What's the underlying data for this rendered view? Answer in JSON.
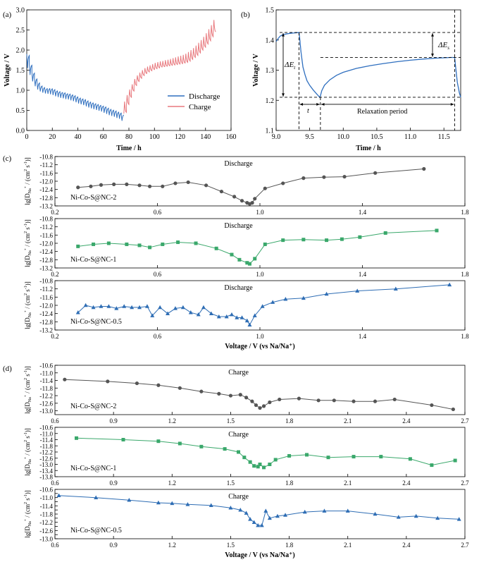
{
  "panel_labels": {
    "a": "(a)",
    "b": "(b)",
    "c": "(c)",
    "d": "(d)"
  },
  "colors": {
    "discharge": "#2f6fbf",
    "charge": "#e8797e",
    "nc2": "#555555",
    "nc1": "#3aa86b",
    "nc05": "#2e6db4",
    "guide": "#000000"
  },
  "annotations": {
    "dEt": "ΔE",
    "dEt_sub": "t",
    "dEs": "ΔE",
    "dEs_sub": "s",
    "tau": "t",
    "relax": "Relaxation period"
  },
  "diff_ylabel": {
    "pre": "lg[D",
    "sub": "Na",
    "mid": "⁺",
    "unit": " / (cm",
    "sup2": "2",
    "unit2": " s",
    "supm1": "-1",
    "end": ")]"
  },
  "chart_data": [
    {
      "id": "a",
      "type": "line",
      "xlabel": "Time / h",
      "ylabel": "Voltage / V",
      "xlim": [
        0,
        160
      ],
      "ylim": [
        0,
        3.0
      ],
      "xticks": [
        0,
        20,
        40,
        60,
        80,
        100,
        120,
        140,
        160
      ],
      "yticks": [
        0.0,
        0.5,
        1.0,
        1.5,
        2.0,
        2.5,
        3.0
      ],
      "ytick_labels": [
        "0.0",
        "0.5",
        "1.0",
        "1.5",
        "2.0",
        "2.5",
        "3.0"
      ],
      "legend_position": "right",
      "series": [
        {
          "name": "Discharge",
          "color": "#2f6fbf",
          "kind": "gitt",
          "start": 0,
          "pulses": 38,
          "period": 2.0,
          "tau_frac": 0.3,
          "v_hi": [
            1.9,
            1.65,
            1.45,
            1.3,
            1.2,
            1.12,
            1.08,
            1.05,
            1.05,
            1.05,
            1.03,
            1.0,
            0.98,
            0.96,
            0.95,
            0.93,
            0.92,
            0.9,
            0.88,
            0.85,
            0.82,
            0.8,
            0.78,
            0.75,
            0.72,
            0.7,
            0.68,
            0.66,
            0.64,
            0.62,
            0.6,
            0.57,
            0.54,
            0.52,
            0.5,
            0.47,
            0.45,
            0.4
          ],
          "v_lo": [
            1.55,
            1.38,
            1.22,
            1.1,
            1.02,
            0.97,
            0.94,
            0.92,
            0.91,
            0.9,
            0.88,
            0.85,
            0.83,
            0.81,
            0.8,
            0.78,
            0.77,
            0.75,
            0.73,
            0.7,
            0.67,
            0.65,
            0.63,
            0.6,
            0.57,
            0.55,
            0.53,
            0.51,
            0.49,
            0.47,
            0.44,
            0.41,
            0.38,
            0.36,
            0.34,
            0.31,
            0.29,
            0.24
          ]
        },
        {
          "name": "Charge",
          "color": "#e8797e",
          "kind": "gitt",
          "start": 76,
          "pulses": 36,
          "period": 2.0,
          "tau_frac": 0.3,
          "v_hi": [
            0.72,
            0.88,
            1.02,
            1.15,
            1.28,
            1.37,
            1.44,
            1.5,
            1.55,
            1.59,
            1.62,
            1.65,
            1.68,
            1.7,
            1.72,
            1.73,
            1.75,
            1.76,
            1.78,
            1.8,
            1.82,
            1.84,
            1.86,
            1.88,
            1.91,
            1.95,
            2.0,
            2.05,
            2.11,
            2.18,
            2.25,
            2.33,
            2.42,
            2.52,
            2.62,
            2.75
          ],
          "v_lo": [
            0.42,
            0.62,
            0.8,
            0.96,
            1.1,
            1.2,
            1.28,
            1.35,
            1.4,
            1.44,
            1.47,
            1.5,
            1.52,
            1.54,
            1.56,
            1.57,
            1.58,
            1.59,
            1.6,
            1.61,
            1.62,
            1.63,
            1.64,
            1.65,
            1.67,
            1.7,
            1.74,
            1.79,
            1.84,
            1.9,
            1.97,
            2.04,
            2.12,
            2.2,
            2.3,
            2.42
          ]
        }
      ]
    },
    {
      "id": "b",
      "type": "line",
      "xlabel": "Time / h",
      "ylabel": "Voltage / V",
      "xlim": [
        9.0,
        11.75
      ],
      "ylim": [
        1.1,
        1.5
      ],
      "xticks": [
        9.0,
        9.5,
        10.0,
        10.5,
        11.0,
        11.5
      ],
      "xtick_labels": [
        "9.0",
        "9.5",
        "10.0",
        "10.5",
        "11.0",
        "11.5"
      ],
      "yticks": [
        1.1,
        1.2,
        1.3,
        1.4,
        1.5
      ],
      "ytick_labels": [
        "1.1",
        "1.2",
        "1.3",
        "1.4",
        "1.5"
      ],
      "series": [
        {
          "name": "",
          "color": "#2f6fbf",
          "x": [
            9.0,
            9.03,
            9.06,
            9.1,
            9.15,
            9.2,
            9.25,
            9.3,
            9.34,
            9.35,
            9.37,
            9.4,
            9.43,
            9.46,
            9.5,
            9.55,
            9.6,
            9.65,
            9.66,
            9.68,
            9.72,
            9.8,
            9.9,
            10.0,
            10.2,
            10.4,
            10.6,
            10.8,
            11.0,
            11.2,
            11.4,
            11.6,
            11.66,
            11.67,
            11.7,
            11.73,
            11.75
          ],
          "y": [
            1.395,
            1.405,
            1.413,
            1.418,
            1.42,
            1.422,
            1.423,
            1.424,
            1.425,
            1.41,
            1.36,
            1.31,
            1.285,
            1.265,
            1.25,
            1.235,
            1.222,
            1.21,
            1.215,
            1.232,
            1.25,
            1.268,
            1.283,
            1.293,
            1.306,
            1.315,
            1.322,
            1.328,
            1.333,
            1.337,
            1.34,
            1.342,
            1.342,
            1.32,
            1.26,
            1.225,
            1.21
          ]
        }
      ],
      "guides": {
        "t_start": 9.34,
        "t_end": 9.66,
        "t_relax_end": 11.66,
        "v_top": 1.425,
        "v_min": 1.21,
        "v_eq": 1.342
      }
    },
    {
      "id": "c",
      "type": "scatter",
      "xlabel": "Voltage / V (vs Na/Na⁺)",
      "xlim": [
        0.2,
        1.8
      ],
      "ylim": [
        -13.2,
        -10.8
      ],
      "xticks": [
        0.2,
        0.6,
        1.0,
        1.4,
        1.8
      ],
      "xtick_labels": [
        "0.2",
        "0.6",
        "1.0",
        "1.4",
        "1.8"
      ],
      "yticks": [
        -10.8,
        -11.2,
        -11.6,
        -12.0,
        -12.4,
        -12.8,
        -13.2
      ],
      "ytick_labels": [
        "-10.8",
        "-11.2",
        "-11.6",
        "-12.0",
        "-12.4",
        "-12.8",
        "-13.2"
      ],
      "subplots": [
        {
          "label": "Ni-Co-S@NC-2",
          "title": "Discharge",
          "color": "#555555",
          "marker": "circle",
          "ytick_labels": [
            "-10.8",
            "-11.2",
            "-11.6",
            "-12.0",
            "-12.4",
            "-12.8",
            "-13.2"
          ],
          "x": [
            0.29,
            0.34,
            0.38,
            0.43,
            0.48,
            0.53,
            0.57,
            0.62,
            0.67,
            0.72,
            0.79,
            0.85,
            0.9,
            0.93,
            0.95,
            0.96,
            0.97,
            0.98,
            1.02,
            1.09,
            1.17,
            1.25,
            1.33,
            1.45,
            1.64
          ],
          "y": [
            -12.3,
            -12.25,
            -12.18,
            -12.15,
            -12.15,
            -12.2,
            -12.25,
            -12.25,
            -12.1,
            -12.05,
            -12.2,
            -12.5,
            -12.75,
            -12.95,
            -13.05,
            -13.1,
            -13.05,
            -12.85,
            -12.35,
            -12.1,
            -11.85,
            -11.8,
            -11.78,
            -11.6,
            -11.4
          ]
        },
        {
          "label": "Ni-Co-S@NC-1",
          "title": "Discharge",
          "color": "#3aa86b",
          "marker": "square",
          "ytick_labels": [
            "-10.8",
            "-11.2",
            "-11.6",
            "-12.0",
            "-12.4",
            "-12.8",
            "-13.2"
          ],
          "x": [
            0.29,
            0.35,
            0.41,
            0.48,
            0.53,
            0.57,
            0.62,
            0.68,
            0.75,
            0.83,
            0.89,
            0.92,
            0.95,
            0.96,
            0.98,
            1.02,
            1.09,
            1.17,
            1.26,
            1.32,
            1.39,
            1.49,
            1.69
          ],
          "y": [
            -12.15,
            -12.05,
            -12.0,
            -12.05,
            -12.1,
            -12.2,
            -12.05,
            -11.95,
            -12.0,
            -12.25,
            -12.55,
            -12.8,
            -12.95,
            -13.0,
            -12.75,
            -12.05,
            -11.85,
            -11.82,
            -11.85,
            -11.8,
            -11.7,
            -11.5,
            -11.38
          ]
        },
        {
          "label": "Ni-Co-S@NC-0.5",
          "title": "Discharge",
          "color": "#2e6db4",
          "marker": "triangle",
          "ytick_labels": [
            "-10.8",
            "-11.2",
            "-11.6",
            "-12.0",
            "-12.4",
            "-12.8",
            "-13.2"
          ],
          "x": [
            0.29,
            0.32,
            0.35,
            0.38,
            0.41,
            0.44,
            0.47,
            0.5,
            0.53,
            0.56,
            0.58,
            0.61,
            0.64,
            0.67,
            0.7,
            0.73,
            0.76,
            0.78,
            0.81,
            0.84,
            0.87,
            0.89,
            0.91,
            0.93,
            0.95,
            0.96,
            0.98,
            1.01,
            1.05,
            1.1,
            1.17,
            1.26,
            1.38,
            1.53,
            1.74
          ],
          "y": [
            -12.35,
            -12.0,
            -12.1,
            -12.05,
            -12.05,
            -12.15,
            -12.05,
            -12.1,
            -12.1,
            -12.05,
            -12.5,
            -12.1,
            -12.4,
            -12.15,
            -12.1,
            -12.35,
            -12.45,
            -12.1,
            -12.4,
            -12.55,
            -12.55,
            -12.45,
            -12.6,
            -12.6,
            -12.75,
            -12.95,
            -12.5,
            -12.05,
            -11.85,
            -11.7,
            -11.65,
            -11.45,
            -11.3,
            -11.2,
            -11.0
          ]
        }
      ]
    },
    {
      "id": "d",
      "type": "scatter",
      "xlabel": "Voltage / V (vs Na/Na⁺)",
      "xlim": [
        0.6,
        2.7
      ],
      "xticks": [
        0.6,
        0.9,
        1.2,
        1.5,
        1.8,
        2.1,
        2.4,
        2.7
      ],
      "xtick_labels": [
        "0.6",
        "0.9",
        "1.2",
        "1.5",
        "1.8",
        "2.1",
        "2.4",
        "2.7"
      ],
      "subplots": [
        {
          "label": "Ni-Co-S@NC-2",
          "title": "Charge",
          "color": "#555555",
          "marker": "circle",
          "ylim": [
            -13.2,
            -10.6
          ],
          "yticks": [
            -10.6,
            -11.0,
            -11.4,
            -11.8,
            -12.2,
            -12.6,
            -13.0
          ],
          "ytick_labels": [
            "-10.6",
            "-11.0",
            "-11.4",
            "-11.8",
            "-12.2",
            "-12.6",
            "-13.0"
          ],
          "x": [
            0.65,
            0.87,
            1.02,
            1.13,
            1.24,
            1.35,
            1.44,
            1.5,
            1.55,
            1.58,
            1.61,
            1.63,
            1.65,
            1.67,
            1.7,
            1.75,
            1.85,
            1.95,
            2.03,
            2.13,
            2.24,
            2.34,
            2.53,
            2.64
          ],
          "y": [
            -11.35,
            -11.45,
            -11.55,
            -11.65,
            -11.8,
            -11.98,
            -12.1,
            -12.2,
            -12.15,
            -12.3,
            -12.5,
            -12.7,
            -12.85,
            -12.75,
            -12.55,
            -12.4,
            -12.35,
            -12.45,
            -12.45,
            -12.5,
            -12.5,
            -12.4,
            -12.7,
            -12.92
          ]
        },
        {
          "label": "Ni-Co-S@NC-1",
          "title": "Charge",
          "color": "#3aa86b",
          "marker": "square",
          "ylim": [
            -13.8,
            -10.6
          ],
          "yticks": [
            -10.6,
            -11.0,
            -11.4,
            -11.8,
            -12.2,
            -12.6,
            -13.0,
            -13.4,
            -13.8
          ],
          "ytick_labels": [
            "-10.6",
            "-11.0",
            "-11.4",
            "-11.8",
            "-12.2",
            "-12.6",
            "-13.0",
            "-13.4",
            "-13.8"
          ],
          "x": [
            0.71,
            0.95,
            1.13,
            1.24,
            1.35,
            1.47,
            1.54,
            1.57,
            1.6,
            1.62,
            1.64,
            1.65,
            1.67,
            1.7,
            1.73,
            1.8,
            1.89,
            2.0,
            2.13,
            2.27,
            2.42,
            2.53,
            2.65
          ],
          "y": [
            -11.3,
            -11.4,
            -11.5,
            -11.65,
            -11.85,
            -12.0,
            -12.2,
            -12.55,
            -12.85,
            -13.1,
            -13.15,
            -13.0,
            -13.2,
            -13.0,
            -12.7,
            -12.45,
            -12.38,
            -12.55,
            -12.5,
            -12.5,
            -12.65,
            -13.05,
            -12.75
          ]
        },
        {
          "label": "Ni-Co-S@NC-0.5",
          "title": "Charge",
          "color": "#2e6db4",
          "marker": "triangle",
          "ylim": [
            -13.0,
            -10.6
          ],
          "yticks": [
            -10.6,
            -10.8,
            -11.0,
            -11.2,
            -11.4,
            -11.6,
            -11.8,
            -12.0,
            -12.2,
            -12.4,
            -12.6,
            -12.8,
            -13.0
          ],
          "ytick_labels": [
            "-10.6",
            "",
            "-11.0",
            "",
            "-11.4",
            "",
            "-11.8",
            "",
            "-12.2",
            "",
            "-12.6",
            "",
            "-13.0"
          ],
          "x": [
            0.62,
            0.81,
            0.98,
            1.13,
            1.2,
            1.28,
            1.4,
            1.5,
            1.55,
            1.58,
            1.6,
            1.62,
            1.64,
            1.66,
            1.68,
            1.7,
            1.74,
            1.78,
            1.88,
            1.98,
            2.1,
            2.24,
            2.36,
            2.45,
            2.56,
            2.67
          ],
          "y": [
            -10.9,
            -11.0,
            -11.12,
            -11.25,
            -11.28,
            -11.33,
            -11.38,
            -11.5,
            -11.6,
            -11.75,
            -12.05,
            -12.2,
            -12.35,
            -12.35,
            -11.65,
            -12.0,
            -11.9,
            -11.85,
            -11.7,
            -11.65,
            -11.65,
            -11.8,
            -11.95,
            -11.9,
            -12.0,
            -12.05
          ]
        }
      ]
    }
  ],
  "legend": {
    "discharge": "Discharge",
    "charge": "Charge"
  }
}
